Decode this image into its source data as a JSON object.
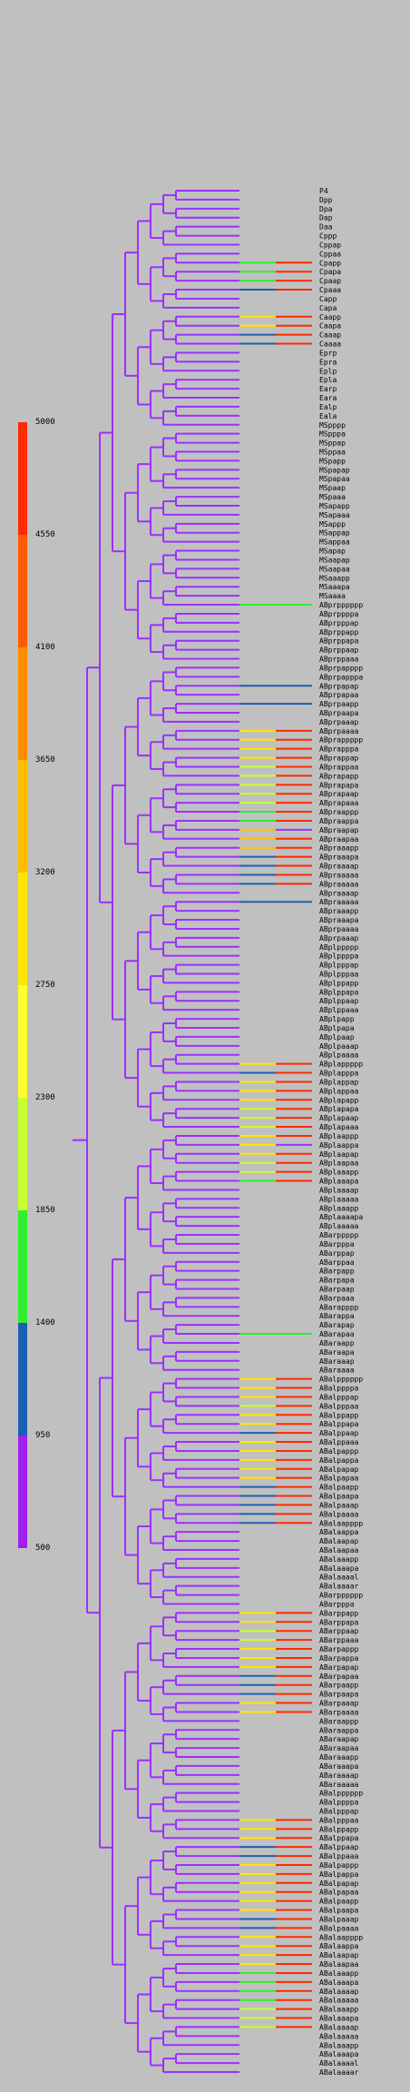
{
  "colorbar": {
    "ticks": [
      "5000",
      "4550",
      "4100",
      "3650",
      "3200",
      "2750",
      "2300",
      "1850",
      "1400",
      "950",
      "500"
    ],
    "bands": [
      {
        "from": 5000,
        "to": 4550,
        "color": "#ff2a00"
      },
      {
        "from": 4550,
        "to": 4100,
        "color": "#ff5a00"
      },
      {
        "from": 4100,
        "to": 3650,
        "color": "#ff8c00"
      },
      {
        "from": 3650,
        "to": 3200,
        "color": "#ffbf00"
      },
      {
        "from": 3200,
        "to": 2750,
        "color": "#ffe600"
      },
      {
        "from": 2750,
        "to": 2300,
        "color": "#ffff30"
      },
      {
        "from": 2300,
        "to": 1850,
        "color": "#c8ff30"
      },
      {
        "from": 1850,
        "to": 1400,
        "color": "#30ee30"
      },
      {
        "from": 1400,
        "to": 950,
        "color": "#1a5fb0"
      },
      {
        "from": 950,
        "to": 500,
        "color": "#a020f0"
      }
    ]
  },
  "tree": {
    "base_color": "#9b30ff",
    "leaves": [
      {
        "label": "P4",
        "trace": []
      },
      {
        "label": "Dpp",
        "trace": []
      },
      {
        "label": "Dpa",
        "trace": []
      },
      {
        "label": "Dap",
        "trace": []
      },
      {
        "label": "Daa",
        "trace": []
      },
      {
        "label": "Cppp",
        "trace": []
      },
      {
        "label": "Cppap",
        "trace": []
      },
      {
        "label": "Cppaa",
        "trace": []
      },
      {
        "label": "Cpapp",
        "trace": [
          "#30ee30",
          "#ff2a00"
        ]
      },
      {
        "label": "Cpapa",
        "trace": [
          "#30ee30",
          "#ff2a00"
        ]
      },
      {
        "label": "Cpaap",
        "trace": [
          "#30ee30",
          "#ff2a00"
        ]
      },
      {
        "label": "Cpaaa",
        "trace": [
          "#1a5fb0",
          "#ff2a00"
        ]
      },
      {
        "label": "Capp",
        "trace": []
      },
      {
        "label": "Capa",
        "trace": []
      },
      {
        "label": "Caapp",
        "trace": [
          "#ffe600",
          "#ff2a00"
        ]
      },
      {
        "label": "Caapa",
        "trace": [
          "#ffe600",
          "#ff2a00"
        ]
      },
      {
        "label": "Caaap",
        "trace": [
          "#1a5fb0",
          "#ff2a00"
        ]
      },
      {
        "label": "Caaaa",
        "trace": [
          "#1a5fb0",
          "#ff2a00"
        ]
      },
      {
        "label": "Eprp",
        "trace": []
      },
      {
        "label": "Epra",
        "trace": []
      },
      {
        "label": "Eplp",
        "trace": []
      },
      {
        "label": "Epla",
        "trace": []
      },
      {
        "label": "Earp",
        "trace": []
      },
      {
        "label": "Eara",
        "trace": []
      },
      {
        "label": "Ealp",
        "trace": []
      },
      {
        "label": "Eala",
        "trace": []
      },
      {
        "label": "MSpppp",
        "trace": []
      },
      {
        "label": "MSpppa",
        "trace": []
      },
      {
        "label": "MSppap",
        "trace": []
      },
      {
        "label": "MSppaa",
        "trace": []
      },
      {
        "label": "MSpapp",
        "trace": []
      },
      {
        "label": "MSpapap",
        "trace": []
      },
      {
        "label": "MSpapaa",
        "trace": []
      },
      {
        "label": "MSpaap",
        "trace": []
      },
      {
        "label": "MSpaaa",
        "trace": []
      },
      {
        "label": "MSapapp",
        "trace": []
      },
      {
        "label": "MSapaaa",
        "trace": []
      },
      {
        "label": "MSappp",
        "trace": []
      },
      {
        "label": "MSappap",
        "trace": []
      },
      {
        "label": "MSappaa",
        "trace": []
      },
      {
        "label": "MSapap",
        "trace": []
      },
      {
        "label": "MSaapap",
        "trace": []
      },
      {
        "label": "MSaapaa",
        "trace": []
      },
      {
        "label": "MSaaapp",
        "trace": []
      },
      {
        "label": "MSaaapa",
        "trace": []
      },
      {
        "label": "MSaaaa",
        "trace": []
      },
      {
        "label": "ABprpppppp",
        "trace": [
          "#30ee30"
        ]
      },
      {
        "label": "ABprppppa",
        "trace": []
      },
      {
        "label": "ABprpppap",
        "trace": []
      },
      {
        "label": "ABprppapp",
        "trace": []
      },
      {
        "label": "ABprppapa",
        "trace": []
      },
      {
        "label": "ABprppaap",
        "trace": []
      },
      {
        "label": "ABprppaaa",
        "trace": []
      },
      {
        "label": "ABprpapppp",
        "trace": []
      },
      {
        "label": "ABprpapppa",
        "trace": []
      },
      {
        "label": "ABprpapap",
        "trace": [
          "#1a5fb0"
        ]
      },
      {
        "label": "ABprpapaa",
        "trace": []
      },
      {
        "label": "ABprpaapp",
        "trace": [
          "#1a5fb0"
        ]
      },
      {
        "label": "ABprpaapa",
        "trace": []
      },
      {
        "label": "ABprpaaap",
        "trace": []
      },
      {
        "label": "ABprpaaaa",
        "trace": [
          "#ffe600",
          "#ff2a00"
        ]
      },
      {
        "label": "ABprappppp",
        "trace": [
          "#ffe600",
          "#ff2a00"
        ]
      },
      {
        "label": "ABprapppa",
        "trace": [
          "#ffe600",
          "#ff2a00"
        ]
      },
      {
        "label": "ABprappap",
        "trace": [
          "#ffe600",
          "#ff2a00"
        ]
      },
      {
        "label": "ABprappaa",
        "trace": [
          "#c8ff30",
          "#ff2a00"
        ]
      },
      {
        "label": "ABprapapp",
        "trace": [
          "#c8ff30",
          "#ff2a00"
        ]
      },
      {
        "label": "ABprapapa",
        "trace": [
          "#c8ff30",
          "#ff2a00"
        ]
      },
      {
        "label": "ABprapaap",
        "trace": [
          "#c8ff30",
          "#ff2a00"
        ]
      },
      {
        "label": "ABprapaaa",
        "trace": [
          "#c8ff30",
          "#ff2a00"
        ]
      },
      {
        "label": "ABpraappp",
        "trace": [
          "#30ee30",
          "#ff2a00"
        ]
      },
      {
        "label": "ABpraappa",
        "trace": [
          "#30ee30",
          "#ff2a00"
        ]
      },
      {
        "label": "ABpraapap",
        "trace": [
          "#ffbf00",
          "#9b30ff"
        ]
      },
      {
        "label": "ABpraapaa",
        "trace": [
          "#ffbf00",
          "#ff2a00"
        ]
      },
      {
        "label": "ABpraaapp",
        "trace": [
          "#ffbf00",
          "#ff2a00"
        ]
      },
      {
        "label": "ABpraaapa",
        "trace": [
          "#1a5fb0",
          "#ff2a00"
        ]
      },
      {
        "label": "ABpraaaap",
        "trace": [
          "#1a5fb0",
          "#ff2a00"
        ]
      },
      {
        "label": "ABpraaaaa",
        "trace": [
          "#1a5fb0",
          "#ff2a00"
        ]
      },
      {
        "label": "ABpraaaaa",
        "trace": [
          "#1a5fb0",
          "#ff2a00"
        ]
      },
      {
        "label": "ABpraaaap",
        "trace": []
      },
      {
        "label": "ABpraaaaa",
        "trace": [
          "#1a5fb0"
        ]
      },
      {
        "label": "ABpraaapp",
        "trace": []
      },
      {
        "label": "ABpraaapa",
        "trace": []
      },
      {
        "label": "ABprpaaaa",
        "trace": []
      },
      {
        "label": "ABprpaaap",
        "trace": []
      },
      {
        "label": "ABplppppp",
        "trace": []
      },
      {
        "label": "ABplppppa",
        "trace": []
      },
      {
        "label": "ABplpppap",
        "trace": []
      },
      {
        "label": "ABplpppaa",
        "trace": []
      },
      {
        "label": "ABplppapp",
        "trace": []
      },
      {
        "label": "ABplppapa",
        "trace": []
      },
      {
        "label": "ABplppaap",
        "trace": []
      },
      {
        "label": "ABplppaaa",
        "trace": []
      },
      {
        "label": "ABplpapp",
        "trace": []
      },
      {
        "label": "ABplpapa",
        "trace": []
      },
      {
        "label": "ABplpaap",
        "trace": []
      },
      {
        "label": "ABplpaaap",
        "trace": []
      },
      {
        "label": "ABplpaaaa",
        "trace": []
      },
      {
        "label": "ABplappppp",
        "trace": [
          "#ffe600",
          "#ff2a00"
        ]
      },
      {
        "label": "ABplapppa",
        "trace": [
          "#1a5fb0",
          "#ff2a00"
        ]
      },
      {
        "label": "ABplappap",
        "trace": [
          "#ffe600",
          "#ff2a00"
        ]
      },
      {
        "label": "ABplappaa",
        "trace": [
          "#ffe600",
          "#ff2a00"
        ]
      },
      {
        "label": "ABplapapp",
        "trace": [
          "#ffe600",
          "#ff2a00"
        ]
      },
      {
        "label": "ABplapapa",
        "trace": [
          "#c8ff30",
          "#ff2a00"
        ]
      },
      {
        "label": "ABplapaap",
        "trace": [
          "#c8ff30",
          "#ff2a00"
        ]
      },
      {
        "label": "ABplapaaa",
        "trace": [
          "#c8ff30",
          "#ff2a00"
        ]
      },
      {
        "label": "ABplaappp",
        "trace": [
          "#ffe600",
          "#ff2a00"
        ]
      },
      {
        "label": "ABplaappa",
        "trace": [
          "#ffe600",
          "#9b30ff"
        ]
      },
      {
        "label": "ABplaapap",
        "trace": [
          "#ffe600",
          "#ff2a00"
        ]
      },
      {
        "label": "ABplaapaa",
        "trace": [
          "#c8ff30",
          "#ff2a00"
        ]
      },
      {
        "label": "ABplaaapp",
        "trace": [
          "#c8ff30",
          "#ff2a00"
        ]
      },
      {
        "label": "ABplaaapa",
        "trace": [
          "#30ee30",
          "#ff2a00"
        ]
      },
      {
        "label": "ABplaaaap",
        "trace": []
      },
      {
        "label": "ABplaaaaa",
        "trace": []
      },
      {
        "label": "ABplaaapp",
        "trace": []
      },
      {
        "label": "ABplaaaapa",
        "trace": []
      },
      {
        "label": "ABplaaaaa",
        "trace": []
      },
      {
        "label": "ABarppppp",
        "trace": []
      },
      {
        "label": "ABarpppa",
        "trace": []
      },
      {
        "label": "ABarppap",
        "trace": []
      },
      {
        "label": "ABarppaa",
        "trace": []
      },
      {
        "label": "ABarpapp",
        "trace": []
      },
      {
        "label": "ABarpapa",
        "trace": []
      },
      {
        "label": "ABarpaap",
        "trace": []
      },
      {
        "label": "ABarpaaa",
        "trace": []
      },
      {
        "label": "ABarapppp",
        "trace": []
      },
      {
        "label": "ABarappa",
        "trace": []
      },
      {
        "label": "ABarapap",
        "trace": []
      },
      {
        "label": "ABarapaa",
        "trace": [
          "#30ee30"
        ]
      },
      {
        "label": "ABaraapp",
        "trace": []
      },
      {
        "label": "ABaraapa",
        "trace": []
      },
      {
        "label": "ABaraaap",
        "trace": []
      },
      {
        "label": "ABaraaaa",
        "trace": []
      },
      {
        "label": "ABalpppppp",
        "trace": [
          "#ffe600",
          "#ff2a00"
        ]
      },
      {
        "label": "ABalppppa",
        "trace": [
          "#ffe600",
          "#ff2a00"
        ]
      },
      {
        "label": "ABalpppap",
        "trace": [
          "#ffe600",
          "#ff2a00"
        ]
      },
      {
        "label": "ABalpppaa",
        "trace": [
          "#c8ff30",
          "#ff2a00"
        ]
      },
      {
        "label": "ABalppapp",
        "trace": [
          "#ffe600",
          "#ff2a00"
        ]
      },
      {
        "label": "ABalppapa",
        "trace": [
          "#ffe600",
          "#ff2a00"
        ]
      },
      {
        "label": "ABalppaap",
        "trace": [
          "#1a5fb0",
          "#ff2a00"
        ]
      },
      {
        "label": "ABalppaaa",
        "trace": [
          "#ffe600",
          "#ff2a00"
        ]
      },
      {
        "label": "ABalpappp",
        "trace": [
          "#ffe600",
          "#ff2a00"
        ]
      },
      {
        "label": "ABalpappa",
        "trace": [
          "#ffe600",
          "#ff2a00"
        ]
      },
      {
        "label": "ABalpapap",
        "trace": [
          "#ffe600",
          "#ff2a00"
        ]
      },
      {
        "label": "ABalpapaa",
        "trace": [
          "#ffe600",
          "#ff2a00"
        ]
      },
      {
        "label": "ABalpaapp",
        "trace": [
          "#1a5fb0",
          "#ff2a00"
        ]
      },
      {
        "label": "ABalpaapa",
        "trace": [
          "#1a5fb0",
          "#ff2a00"
        ]
      },
      {
        "label": "ABalpaaap",
        "trace": [
          "#1a5fb0",
          "#ff2a00"
        ]
      },
      {
        "label": "ABalpaaaa",
        "trace": [
          "#1a5fb0",
          "#ff2a00"
        ]
      },
      {
        "label": "ABalaapppp",
        "trace": [
          "#1a5fb0",
          "#ff2a00"
        ]
      },
      {
        "label": "ABalaappa",
        "trace": []
      },
      {
        "label": "ABalaapap",
        "trace": []
      },
      {
        "label": "ABalaapaa",
        "trace": []
      },
      {
        "label": "ABalaaapp",
        "trace": []
      },
      {
        "label": "ABalaaapa",
        "trace": []
      },
      {
        "label": "ABalaaaal",
        "trace": []
      },
      {
        "label": "ABalaaaar",
        "trace": []
      },
      {
        "label": "ABarpppppp",
        "trace": []
      },
      {
        "label": "ABarpppa",
        "trace": []
      },
      {
        "label": "ABarppapp",
        "trace": [
          "#ffe600",
          "#ff2a00"
        ]
      },
      {
        "label": "ABarppapa",
        "trace": [
          "#ffe600",
          "#ff2a00"
        ]
      },
      {
        "label": "ABarppaap",
        "trace": [
          "#c8ff30",
          "#ff2a00"
        ]
      },
      {
        "label": "ABarppaaa",
        "trace": [
          "#c8ff30",
          "#ff2a00"
        ]
      },
      {
        "label": "ABarpappp",
        "trace": [
          "#ffe600",
          "#ff2a00"
        ]
      },
      {
        "label": "ABarpappa",
        "trace": [
          "#ffe600",
          "#ff2a00"
        ]
      },
      {
        "label": "ABarpapap",
        "trace": [
          "#ffe600",
          "#ff2a00"
        ]
      },
      {
        "label": "ABarpapaa",
        "trace": [
          "#1a5fb0",
          "#ff2a00"
        ]
      },
      {
        "label": "ABarpaapp",
        "trace": [
          "#1a5fb0",
          "#ff2a00"
        ]
      },
      {
        "label": "ABarpaapa",
        "trace": [
          "#1a5fb0",
          "#ff2a00"
        ]
      },
      {
        "label": "ABarpaaap",
        "trace": [
          "#ffe600",
          "#ff2a00"
        ]
      },
      {
        "label": "ABarpaaaa",
        "trace": [
          "#ffe600",
          "#ff2a00"
        ]
      },
      {
        "label": "ABaraappp",
        "trace": []
      },
      {
        "label": "ABaraappa",
        "trace": []
      },
      {
        "label": "ABaraapap",
        "trace": []
      },
      {
        "label": "ABaraapaa",
        "trace": []
      },
      {
        "label": "ABaraaapp",
        "trace": []
      },
      {
        "label": "ABaraaapa",
        "trace": []
      },
      {
        "label": "ABaraaaap",
        "trace": []
      },
      {
        "label": "ABaraaaaa",
        "trace": []
      },
      {
        "label": "ABalpppppp",
        "trace": []
      },
      {
        "label": "ABalppppa",
        "trace": []
      },
      {
        "label": "ABalpppap",
        "trace": []
      },
      {
        "label": "ABalpppaa",
        "trace": [
          "#ffe600",
          "#ff2a00"
        ]
      },
      {
        "label": "ABalppapp",
        "trace": [
          "#ffe600",
          "#ff2a00"
        ]
      },
      {
        "label": "ABalppapa",
        "trace": [
          "#ffe600",
          "#ff2a00"
        ]
      },
      {
        "label": "ABalppaap",
        "trace": [
          "#1a5fb0",
          "#ff2a00"
        ]
      },
      {
        "label": "ABalppaaa",
        "trace": [
          "#1a5fb0",
          "#ff2a00"
        ]
      },
      {
        "label": "ABalpappp",
        "trace": [
          "#ffe600",
          "#ff2a00"
        ]
      },
      {
        "label": "ABalpappa",
        "trace": [
          "#ffe600",
          "#ff2a00"
        ]
      },
      {
        "label": "ABalpapap",
        "trace": [
          "#ffe600",
          "#ff2a00"
        ]
      },
      {
        "label": "ABalpapaa",
        "trace": [
          "#ffe600",
          "#ff2a00"
        ]
      },
      {
        "label": "ABalpaapp",
        "trace": [
          "#ffe600",
          "#ff2a00"
        ]
      },
      {
        "label": "ABalpaapa",
        "trace": [
          "#ffe600",
          "#ff2a00"
        ]
      },
      {
        "label": "ABalpaaap",
        "trace": [
          "#1a5fb0",
          "#ff2a00"
        ]
      },
      {
        "label": "ABalpaaaa",
        "trace": [
          "#1a5fb0",
          "#ff2a00"
        ]
      },
      {
        "label": "ABalaapppp",
        "trace": [
          "#ffe600",
          "#ff2a00"
        ]
      },
      {
        "label": "ABalaappa",
        "trace": [
          "#ffe600",
          "#ff2a00"
        ]
      },
      {
        "label": "ABalaapap",
        "trace": [
          "#ffe600",
          "#ff2a00"
        ]
      },
      {
        "label": "ABalaapaa",
        "trace": [
          "#ffe600",
          "#ff2a00"
        ]
      },
      {
        "label": "ABalaaapp",
        "trace": [
          "#30ee30",
          "#ff2a00"
        ]
      },
      {
        "label": "ABalaaapa",
        "trace": [
          "#30ee30",
          "#ff2a00"
        ]
      },
      {
        "label": "ABalaaaap",
        "trace": [
          "#30ee30",
          "#ff2a00"
        ]
      },
      {
        "label": "ABalaaaaa",
        "trace": [
          "#30ee30",
          "#ff2a00"
        ]
      },
      {
        "label": "ABalaaapp",
        "trace": [
          "#c8ff30",
          "#ff2a00"
        ]
      },
      {
        "label": "ABalaaapa",
        "trace": [
          "#c8ff30",
          "#ff2a00"
        ]
      },
      {
        "label": "ABalaaaap",
        "trace": [
          "#c8ff30",
          "#ff2a00"
        ]
      },
      {
        "label": "ABalaaaaa",
        "trace": []
      },
      {
        "label": "ABalaaapp",
        "trace": []
      },
      {
        "label": "ABalaaapa",
        "trace": []
      },
      {
        "label": "ABalaaaal",
        "trace": []
      },
      {
        "label": "ABalaaaar",
        "trace": []
      }
    ]
  }
}
